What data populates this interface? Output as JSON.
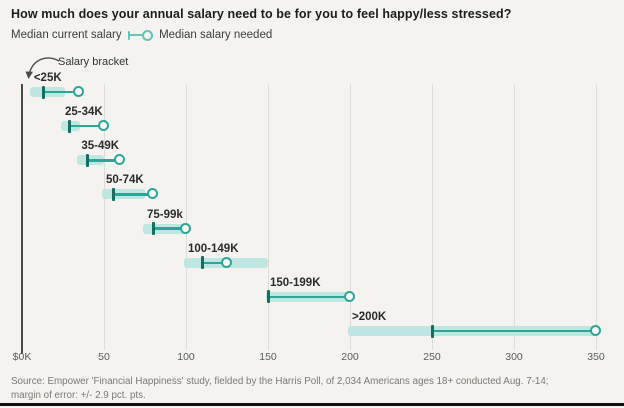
{
  "title": "How much does your annual salary need to be for you to feel happy/less stressed?",
  "legend": {
    "left_label": "Median current salary",
    "right_label": "Median salary needed"
  },
  "annotation": "Salary bracket",
  "source_line1": "Source: Empower 'Financial Happiness' study, fielded by the Harris Poll, of 2,034 Americans ages 18+ conducted Aug. 7-14;",
  "source_line2": "margin of error: +/- 2.9 pct. pts.",
  "chart_data": {
    "type": "dumbbell-range",
    "title": "How much does your annual salary need to be for you to feel happy/less stressed?",
    "categories": [
      "<25K",
      "25-34K",
      "35-49K",
      "50-74K",
      "75-99k",
      "100-149K",
      "150-199K",
      ">200K"
    ],
    "series": [
      {
        "name": "Median current salary",
        "marker": "tick",
        "values": [
          13,
          29,
          40,
          56,
          80,
          110,
          150,
          250
        ]
      },
      {
        "name": "Median salary needed",
        "marker": "circle",
        "values": [
          35,
          50,
          60,
          80,
          100,
          125,
          200,
          350
        ]
      }
    ],
    "bracket_bands": [
      [
        6,
        25
      ],
      [
        25,
        34
      ],
      [
        35,
        49
      ],
      [
        50,
        74
      ],
      [
        75,
        99
      ],
      [
        100,
        149
      ],
      [
        150,
        199
      ],
      [
        200,
        350
      ]
    ],
    "x_ticks": [
      0,
      50,
      100,
      150,
      200,
      250,
      300,
      350
    ],
    "x_tick_labels": [
      "$0K",
      "50",
      "100",
      "150",
      "200",
      "250",
      "300",
      "350"
    ],
    "xlim": [
      0,
      350
    ],
    "grid": true,
    "legend_position": "top-left",
    "annotation": "Salary bracket",
    "colors": {
      "band": "#bee7e2",
      "line": "#2da69a",
      "tick": "#166d64",
      "dot_fill": "#fbfaf7",
      "grid": "#dedcd7",
      "axis": "#4a4a4a",
      "legend_glyph": "#63c3b9"
    }
  }
}
